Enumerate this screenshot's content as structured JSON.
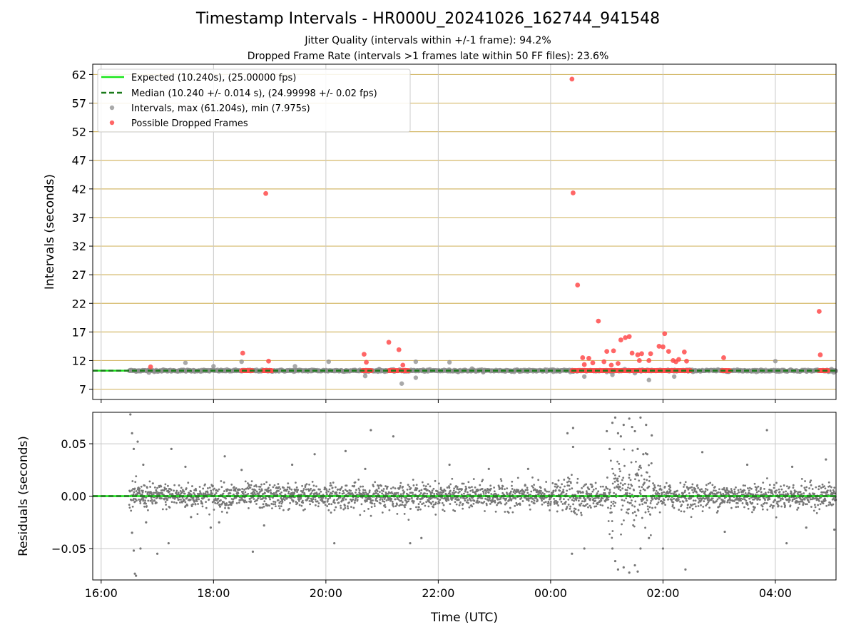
{
  "header": {
    "title": "Timestamp Intervals - HR000U_20241026_162744_941548",
    "subtitle1": "Jitter Quality (intervals within +/-1 frame): 94.2%",
    "subtitle2": "Dropped Frame Rate (intervals >1 frames late within 50 FF files): 23.6%"
  },
  "chart_data": [
    {
      "type": "scatter",
      "panel": "intervals",
      "ylabel": "Intervals (seconds)",
      "xlabel": "",
      "x_unit": "hours (UTC), continuous from 16:00 on day 1",
      "x_ticks": [
        {
          "x": 16,
          "label": "16:00"
        },
        {
          "x": 18,
          "label": "18:00"
        },
        {
          "x": 20,
          "label": "20:00"
        },
        {
          "x": 22,
          "label": "22:00"
        },
        {
          "x": 24,
          "label": "00:00"
        },
        {
          "x": 26,
          "label": "02:00"
        },
        {
          "x": 28,
          "label": "04:00"
        }
      ],
      "xlim": [
        15.85,
        29.08
      ],
      "ylim": [
        5.2,
        63.8
      ],
      "y_ticks": [
        7,
        12,
        17,
        22,
        27,
        32,
        37,
        42,
        47,
        52,
        57,
        62
      ],
      "grid": true,
      "legend_position": "top-left",
      "legend": [
        {
          "label": "Expected (10.240s), (25.00000 fps)",
          "style": "solid-line",
          "color": "#19e619"
        },
        {
          "label": "Median (10.240 +/- 0.014 s), (24.99998 +/- 0.02 fps)",
          "style": "dashed-line",
          "color": "#1a7a1a"
        },
        {
          "label": "Intervals, max (61.204s), min (7.975s)",
          "style": "marker",
          "color": "#8c8c8c"
        },
        {
          "label": "Possible Dropped Frames",
          "style": "marker",
          "color": "#ff4b4b"
        }
      ],
      "expected_interval": 10.24,
      "median_interval": 10.24,
      "interval_max": 61.204,
      "interval_min": 7.975,
      "series": [
        {
          "name": "Intervals, max (61.204s), min (7.975s)",
          "points": [
            [
              16.6,
              10.2
            ],
            [
              16.85,
              9.9
            ],
            [
              17.1,
              10.4
            ],
            [
              17.5,
              11.6
            ],
            [
              17.85,
              10.3
            ],
            [
              18.0,
              11.0
            ],
            [
              18.5,
              11.8
            ],
            [
              19.45,
              11.0
            ],
            [
              19.75,
              10.4
            ],
            [
              20.05,
              11.8
            ],
            [
              20.7,
              9.3
            ],
            [
              20.95,
              10.5
            ],
            [
              21.35,
              7.975
            ],
            [
              21.6,
              11.8
            ],
            [
              21.6,
              9.0
            ],
            [
              22.2,
              11.7
            ],
            [
              22.6,
              10.6
            ],
            [
              24.35,
              10.0
            ],
            [
              24.6,
              9.2
            ],
            [
              25.0,
              10.0
            ],
            [
              25.1,
              9.5
            ],
            [
              25.5,
              9.8
            ],
            [
              25.75,
              8.6
            ],
            [
              26.2,
              9.2
            ],
            [
              26.5,
              10.2
            ],
            [
              27.45,
              10.3
            ],
            [
              28.0,
              11.9
            ],
            [
              28.35,
              10.2
            ],
            [
              28.75,
              10.4
            ],
            [
              29.0,
              10.5
            ]
          ]
        },
        {
          "name": "Possible Dropped Frames",
          "points": [
            [
              16.88,
              10.9
            ],
            [
              18.52,
              13.3
            ],
            [
              18.93,
              41.2
            ],
            [
              18.98,
              11.9
            ],
            [
              20.68,
              13.1
            ],
            [
              20.72,
              11.7
            ],
            [
              21.12,
              15.2
            ],
            [
              21.3,
              13.9
            ],
            [
              21.37,
              11.2
            ],
            [
              24.38,
              61.2
            ],
            [
              24.4,
              41.3
            ],
            [
              24.48,
              25.2
            ],
            [
              24.57,
              12.5
            ],
            [
              24.6,
              11.3
            ],
            [
              24.68,
              12.4
            ],
            [
              24.75,
              11.6
            ],
            [
              24.85,
              18.9
            ],
            [
              24.95,
              11.8
            ],
            [
              25.0,
              13.6
            ],
            [
              25.08,
              11.2
            ],
            [
              25.12,
              13.7
            ],
            [
              25.2,
              11.5
            ],
            [
              25.25,
              15.6
            ],
            [
              25.33,
              16.0
            ],
            [
              25.4,
              16.2
            ],
            [
              25.45,
              13.3
            ],
            [
              25.55,
              13.0
            ],
            [
              25.58,
              12.0
            ],
            [
              25.62,
              13.2
            ],
            [
              25.78,
              13.2
            ],
            [
              25.75,
              12.0
            ],
            [
              25.93,
              14.5
            ],
            [
              26.0,
              14.4
            ],
            [
              26.03,
              16.7
            ],
            [
              26.1,
              13.6
            ],
            [
              26.18,
              12.0
            ],
            [
              26.23,
              11.8
            ],
            [
              26.28,
              12.2
            ],
            [
              26.38,
              13.5
            ],
            [
              26.42,
              11.9
            ],
            [
              27.08,
              12.5
            ],
            [
              28.78,
              20.6
            ],
            [
              28.8,
              13.0
            ]
          ],
          "bands": [
            [
              18.5,
              18.7,
              10.24
            ],
            [
              18.88,
              19.05,
              10.24
            ],
            [
              20.65,
              20.82,
              10.24
            ],
            [
              21.12,
              21.3,
              10.24
            ],
            [
              21.35,
              21.48,
              10.24
            ],
            [
              24.38,
              26.5,
              10.24
            ],
            [
              27.05,
              27.2,
              10.24
            ],
            [
              28.78,
              28.95,
              10.24
            ]
          ]
        }
      ]
    },
    {
      "type": "scatter",
      "panel": "residuals",
      "ylabel": "Residuals (seconds)",
      "xlabel": "Time (UTC)",
      "xlim": [
        15.85,
        29.08
      ],
      "ylim": [
        -0.08,
        0.08
      ],
      "y_ticks": [
        {
          "y": 0.05,
          "label": "0.05"
        },
        {
          "y": 0.0,
          "label": "0.00"
        },
        {
          "y": -0.05,
          "label": "−0.05"
        }
      ],
      "grid": true,
      "zero_line_color": "#19e619",
      "median_line_color": "#1a7a1a",
      "series": [
        {
          "name": "",
          "color": "#777777",
          "points": [
            [
              16.52,
              0.078
            ],
            [
              16.55,
              0.06
            ],
            [
              16.58,
              0.045
            ],
            [
              16.6,
              -0.074
            ],
            [
              16.62,
              -0.076
            ],
            [
              16.55,
              -0.035
            ],
            [
              16.58,
              -0.052
            ],
            [
              16.65,
              0.052
            ],
            [
              16.7,
              -0.05
            ],
            [
              16.75,
              0.03
            ],
            [
              16.8,
              -0.025
            ],
            [
              17.0,
              -0.055
            ],
            [
              17.2,
              -0.045
            ],
            [
              17.25,
              0.045
            ],
            [
              17.5,
              0.028
            ],
            [
              17.6,
              -0.02
            ],
            [
              17.95,
              -0.03
            ],
            [
              18.1,
              -0.025
            ],
            [
              18.2,
              0.038
            ],
            [
              18.5,
              0.025
            ],
            [
              18.7,
              -0.053
            ],
            [
              18.9,
              -0.028
            ],
            [
              19.4,
              0.03
            ],
            [
              19.8,
              0.04
            ],
            [
              20.15,
              -0.045
            ],
            [
              20.35,
              0.043
            ],
            [
              20.7,
              0.026
            ],
            [
              20.8,
              0.063
            ],
            [
              21.2,
              0.057
            ],
            [
              21.5,
              -0.045
            ],
            [
              21.7,
              -0.04
            ],
            [
              22.2,
              0.03
            ],
            [
              22.9,
              0.026
            ],
            [
              23.6,
              0.026
            ],
            [
              24.3,
              0.06
            ],
            [
              24.4,
              0.065
            ],
            [
              24.4,
              0.047
            ],
            [
              24.38,
              -0.055
            ],
            [
              24.6,
              -0.05
            ],
            [
              25.0,
              0.062
            ],
            [
              25.05,
              0.045
            ],
            [
              25.1,
              0.07
            ],
            [
              25.15,
              0.075
            ],
            [
              25.2,
              0.06
            ],
            [
              25.25,
              0.057
            ],
            [
              25.3,
              0.068
            ],
            [
              25.4,
              0.074
            ],
            [
              25.45,
              0.066
            ],
            [
              25.5,
              0.062
            ],
            [
              25.6,
              0.075
            ],
            [
              25.7,
              0.068
            ],
            [
              25.8,
              0.058
            ],
            [
              25.55,
              0.045
            ],
            [
              25.65,
              0.04
            ],
            [
              25.72,
              0.04
            ],
            [
              25.1,
              -0.05
            ],
            [
              25.15,
              -0.062
            ],
            [
              25.2,
              -0.07
            ],
            [
              25.3,
              -0.068
            ],
            [
              25.4,
              -0.073
            ],
            [
              25.5,
              -0.066
            ],
            [
              25.55,
              -0.072
            ],
            [
              25.6,
              -0.05
            ],
            [
              25.75,
              -0.04
            ],
            [
              26.0,
              -0.05
            ],
            [
              26.4,
              -0.07
            ],
            [
              26.7,
              0.042
            ],
            [
              27.1,
              -0.034
            ],
            [
              27.5,
              0.03
            ],
            [
              27.85,
              0.063
            ],
            [
              28.2,
              -0.045
            ],
            [
              28.3,
              0.028
            ],
            [
              28.55,
              -0.03
            ],
            [
              28.9,
              0.035
            ],
            [
              29.05,
              -0.032
            ]
          ],
          "band": {
            "x_range": [
              16.5,
              29.08
            ],
            "typical_spread": 0.006
          }
        }
      ]
    }
  ]
}
